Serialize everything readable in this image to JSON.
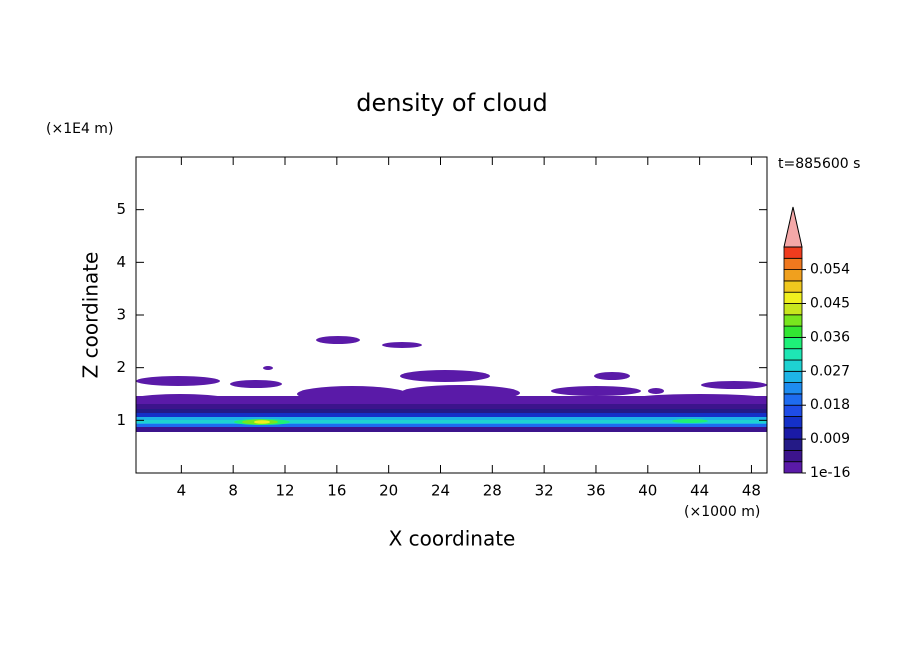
{
  "chart_data": {
    "type": "contour",
    "title": "density of cloud",
    "xlabel": "X coordinate",
    "ylabel": "Z coordinate",
    "x_unit": "(×1000 m)",
    "y_unit": "(×1E4 m)",
    "time_label": "t=885600 s",
    "xlim": [
      0.5,
      49.2
    ],
    "xticks": [
      4,
      8,
      12,
      16,
      20,
      24,
      28,
      32,
      36,
      40,
      44,
      48
    ],
    "ylim": [
      0,
      6
    ],
    "yticks": [
      1,
      2,
      3,
      4,
      5
    ],
    "levels": [
      1e-16,
      0.003,
      0.006,
      0.009,
      0.012,
      0.015,
      0.018,
      0.021,
      0.024,
      0.027,
      0.03,
      0.033,
      0.036,
      0.039,
      0.042,
      0.045,
      0.048,
      0.051,
      0.054,
      0.057,
      0.06
    ],
    "level_colors": [
      "#5a1aa8",
      "#3c148c",
      "#241a86",
      "#1a1aa6",
      "#1430c8",
      "#1e4ce6",
      "#1e6cf0",
      "#1e8cf0",
      "#1eb4e6",
      "#1ed2d2",
      "#1ee6b4",
      "#1ef078",
      "#32e632",
      "#78e61e",
      "#c8e61e",
      "#f0f01e",
      "#f0c81e",
      "#f0a01e",
      "#f0781e",
      "#f03c1e"
    ],
    "over_color": "#f4a8a8",
    "colorbar_ticks": [
      1e-16,
      0.009,
      0.018,
      0.027,
      0.036,
      0.045,
      0.054
    ]
  }
}
